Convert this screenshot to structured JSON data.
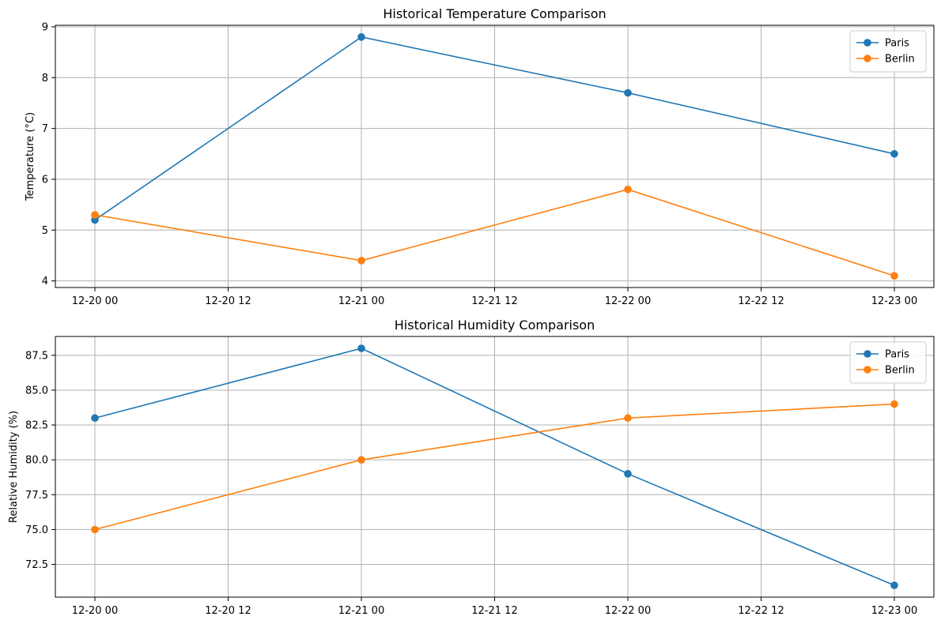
{
  "chart_data": [
    {
      "type": "line",
      "title": "Historical Temperature Comparison",
      "xlabel": "",
      "ylabel": "Temperature (°C)",
      "x": [
        "12-20 00",
        "12-21 00",
        "12-22 00",
        "12-23 00"
      ],
      "xticks": [
        "12-20 00",
        "12-20 12",
        "12-21 00",
        "12-21 12",
        "12-22 00",
        "12-22 12",
        "12-23 00"
      ],
      "yticks": [
        "4",
        "5",
        "6",
        "7",
        "8",
        "9"
      ],
      "ylim": [
        3.87,
        9.03
      ],
      "grid": true,
      "legend_position": "top-right",
      "series": [
        {
          "name": "Paris",
          "color": "#1f77b4",
          "values": [
            5.2,
            8.8,
            7.7,
            6.5
          ]
        },
        {
          "name": "Berlin",
          "color": "#ff7f0e",
          "values": [
            5.3,
            4.4,
            5.8,
            4.1
          ]
        }
      ]
    },
    {
      "type": "line",
      "title": "Historical Humidity Comparison",
      "xlabel": "",
      "ylabel": "Relative Humidity (%)",
      "x": [
        "12-20 00",
        "12-21 00",
        "12-22 00",
        "12-23 00"
      ],
      "xticks": [
        "12-20 00",
        "12-20 12",
        "12-21 00",
        "12-21 12",
        "12-22 00",
        "12-22 12",
        "12-23 00"
      ],
      "yticks": [
        "72.5",
        "75.0",
        "77.5",
        "80.0",
        "82.5",
        "85.0",
        "87.5"
      ],
      "ylim": [
        70.15,
        88.85
      ],
      "grid": true,
      "legend_position": "top-right",
      "series": [
        {
          "name": "Paris",
          "color": "#1f77b4",
          "values": [
            83,
            88,
            79,
            71
          ]
        },
        {
          "name": "Berlin",
          "color": "#ff7f0e",
          "values": [
            75,
            80,
            83,
            84
          ]
        }
      ]
    }
  ]
}
